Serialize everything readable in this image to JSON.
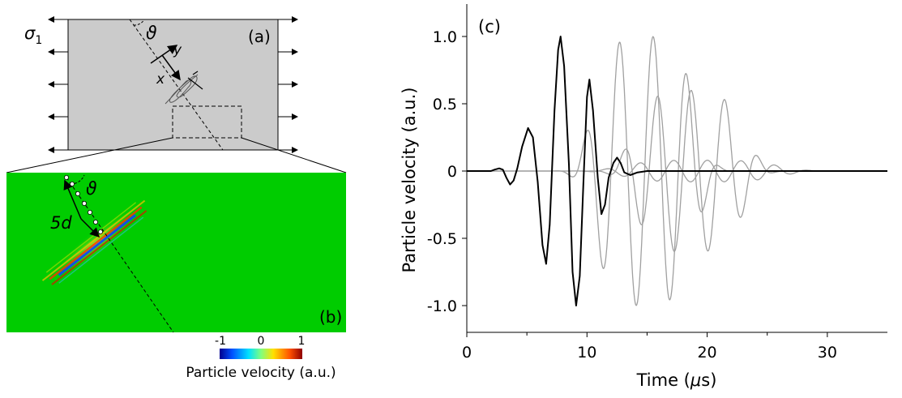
{
  "panels": {
    "a": {
      "label": "(a)",
      "stress_label": "σ",
      "stress_sub": "1",
      "angle_label": "ϑ",
      "x_axis": "x",
      "y_axis": "y"
    },
    "b": {
      "label": "(b)",
      "angle_label": "ϑ",
      "distance_label": "5d"
    },
    "colorbar": {
      "ticks": [
        "-1",
        "0",
        "1"
      ],
      "title": "Particle velocity (a.u.)",
      "colors": [
        "#00008f",
        "#0050ff",
        "#00e0ff",
        "#7fff7f",
        "#ffe000",
        "#ff5000",
        "#8f0000"
      ]
    }
  },
  "chart_data": {
    "type": "line",
    "panel_label": "(c)",
    "xlabel_main": "Time (",
    "xlabel_unit": "μ",
    "xlabel_tail": "s)",
    "ylabel": "Particle velocity (a.u.)",
    "xlim": [
      0,
      35
    ],
    "ylim": [
      -1.2,
      1.25
    ],
    "x_ticks": [
      0,
      10,
      20,
      30
    ],
    "x_tick_labels": [
      "0",
      "10",
      "20",
      "30"
    ],
    "y_ticks": [
      1.0,
      0.5,
      0,
      -0.5,
      -1.0
    ],
    "y_tick_labels": [
      "1.0",
      "0.5",
      "0",
      "-0.5",
      "-1.0"
    ],
    "grid": false,
    "series": [
      {
        "color": "#000000",
        "width": 2,
        "points": [
          [
            0,
            0
          ],
          [
            2,
            0
          ],
          [
            2.3,
            0.01
          ],
          [
            2.7,
            0.02
          ],
          [
            3,
            0.01
          ],
          [
            3.3,
            -0.05
          ],
          [
            3.6,
            -0.1
          ],
          [
            3.9,
            -0.07
          ],
          [
            4.2,
            0.02
          ],
          [
            4.6,
            0.18
          ],
          [
            5.1,
            0.32
          ],
          [
            5.5,
            0.25
          ],
          [
            5.9,
            -0.08
          ],
          [
            6.3,
            -0.55
          ],
          [
            6.6,
            -0.69
          ],
          [
            6.9,
            -0.4
          ],
          [
            7.3,
            0.45
          ],
          [
            7.6,
            0.9
          ],
          [
            7.8,
            1.0
          ],
          [
            8.1,
            0.78
          ],
          [
            8.5,
            0.05
          ],
          [
            8.8,
            -0.75
          ],
          [
            9.1,
            -1.0
          ],
          [
            9.4,
            -0.78
          ],
          [
            9.7,
            -0.1
          ],
          [
            10,
            0.55
          ],
          [
            10.2,
            0.68
          ],
          [
            10.5,
            0.45
          ],
          [
            10.9,
            -0.05
          ],
          [
            11.2,
            -0.32
          ],
          [
            11.5,
            -0.25
          ],
          [
            11.8,
            -0.05
          ],
          [
            12.2,
            0.06
          ],
          [
            12.5,
            0.1
          ],
          [
            12.8,
            0.06
          ],
          [
            13.1,
            -0.01
          ],
          [
            13.6,
            -0.03
          ],
          [
            14.2,
            -0.01
          ],
          [
            15,
            0
          ],
          [
            35,
            0
          ]
        ]
      },
      {
        "color": "#a0a0a0",
        "width": 1.3,
        "freq_hz": 2.8,
        "center": 14.8,
        "width_s": 4.6,
        "amp": 1.0,
        "t0": 5.0,
        "t1": 25.5
      },
      {
        "color": "#a0a0a0",
        "width": 1.3,
        "freq_hz": 2.8,
        "center": 18.5,
        "width_s": 5.0,
        "amp": 0.6,
        "t0": 8.0,
        "t1": 30.0,
        "phase": 1.2
      },
      {
        "color": "#a0a0a0",
        "width": 1.3,
        "freq_hz": 2.8,
        "center": 19.5,
        "width_s": 7.0,
        "amp": 0.08,
        "t0": 2.5,
        "t1": 34.0,
        "phase": 0.4
      }
    ]
  }
}
